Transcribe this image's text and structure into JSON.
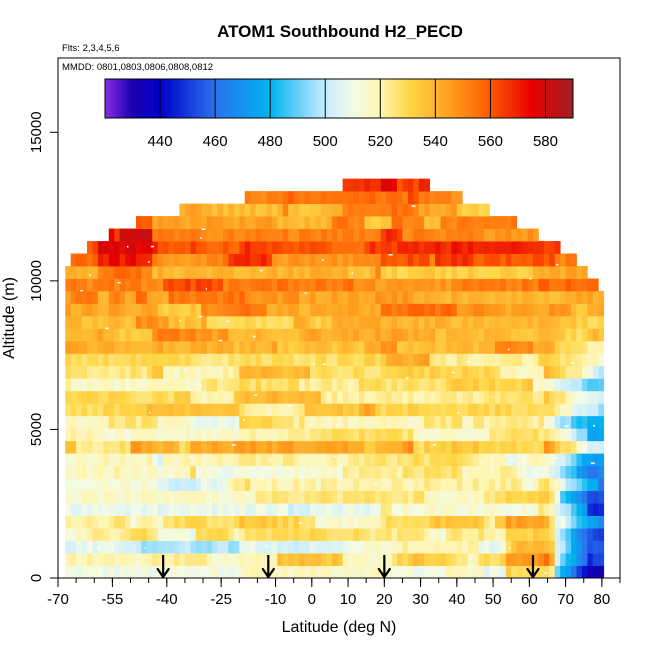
{
  "chart_data": {
    "type": "heatmap",
    "title": "ATOM1 Southbound H2_PECD",
    "annotations": {
      "flights": "Flts: 2,3,4,5,6",
      "dates": "MMDD: 0801,0803,0806,0808,0812"
    },
    "xlabel": "Latitude (deg N)",
    "ylabel": "Altitude (m)",
    "xlim": [
      -70,
      85
    ],
    "ylim": [
      0,
      17500
    ],
    "x_ticks": [
      -70,
      -55,
      -40,
      -25,
      -10,
      0,
      10,
      20,
      30,
      40,
      50,
      60,
      70,
      80
    ],
    "x_minor_step": 5,
    "y_ticks": [
      0,
      5000,
      10000,
      15000
    ],
    "colorbar": {
      "range": [
        420,
        590
      ],
      "ticks": [
        440,
        460,
        480,
        500,
        520,
        540,
        560,
        580
      ],
      "stops": [
        {
          "v": 420,
          "c": "#8a2be2"
        },
        {
          "v": 430,
          "c": "#1a00b0"
        },
        {
          "v": 440,
          "c": "#0000c8"
        },
        {
          "v": 460,
          "c": "#2a72ee"
        },
        {
          "v": 480,
          "c": "#00b4f0"
        },
        {
          "v": 500,
          "c": "#c8ecff"
        },
        {
          "v": 510,
          "c": "#f2fbe6"
        },
        {
          "v": 520,
          "c": "#fff5b0"
        },
        {
          "v": 530,
          "c": "#ffd84a"
        },
        {
          "v": 545,
          "c": "#ffa020"
        },
        {
          "v": 560,
          "c": "#ff5a00"
        },
        {
          "v": 575,
          "c": "#e80000"
        },
        {
          "v": 590,
          "c": "#a02020"
        }
      ]
    },
    "data_extent": {
      "lat_range": [
        -68,
        80
      ],
      "ceiling_profile": [
        {
          "lat": -68,
          "alt": 10500
        },
        {
          "lat": -60,
          "alt": 11200
        },
        {
          "lat": -45,
          "alt": 12000
        },
        {
          "lat": -20,
          "alt": 12600
        },
        {
          "lat": 0,
          "alt": 12900
        },
        {
          "lat": 25,
          "alt": 13300
        },
        {
          "lat": 45,
          "alt": 12400
        },
        {
          "lat": 60,
          "alt": 11500
        },
        {
          "lat": 70,
          "alt": 10700
        },
        {
          "lat": 80,
          "alt": 9500
        }
      ],
      "approx_value_by_region": [
        {
          "region": "upper troposphere, most latitudes",
          "value": 560
        },
        {
          "region": "mid troposphere",
          "value": 535
        },
        {
          "region": "southern hemisphere lower troposphere",
          "value": 515
        },
        {
          "region": "northern high latitudes lower troposphere",
          "value": 470
        },
        {
          "region": "near 60N surface layer",
          "value": 575
        }
      ]
    },
    "markers": {
      "type": "down-arrow",
      "lats": [
        -41,
        -12,
        20,
        61
      ]
    }
  }
}
